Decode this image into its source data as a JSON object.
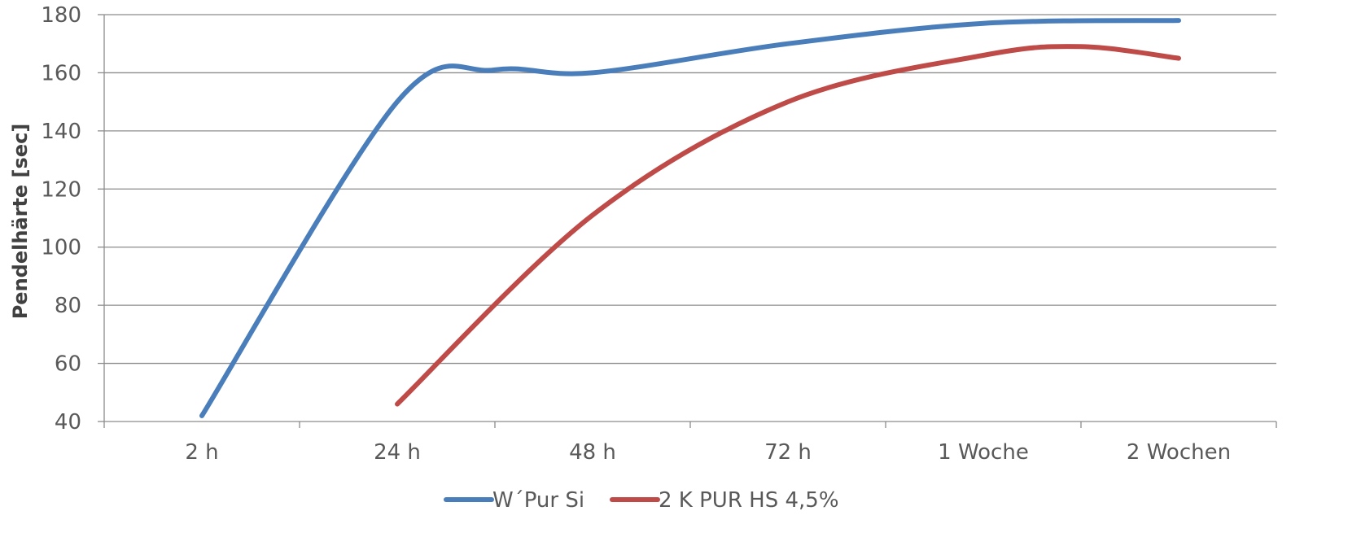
{
  "chart_data": {
    "type": "line",
    "title": "",
    "xlabel": "",
    "ylabel": "Pendelhärte [sec]",
    "categories": [
      "2 h",
      "24 h",
      "48 h",
      "72 h",
      "1 Woche",
      "2 Wochen"
    ],
    "ylim": [
      40,
      180
    ],
    "yticks": [
      40,
      60,
      80,
      100,
      120,
      140,
      160,
      180
    ],
    "grid": "horizontal",
    "legend_position": "bottom",
    "smooth": true,
    "series": [
      {
        "name": "W´Pur Si",
        "color": "#4a7ebb",
        "x": [
          0,
          1,
          1.5,
          2,
          3,
          4,
          5
        ],
        "values": [
          42,
          150,
          161,
          160,
          170,
          177,
          178
        ]
      },
      {
        "name": "2 K PUR HS 4,5%",
        "color": "#be4b48",
        "x": [
          1,
          2,
          3,
          4,
          4.5,
          5
        ],
        "values": [
          46,
          111,
          150,
          166,
          169,
          165
        ]
      }
    ]
  }
}
